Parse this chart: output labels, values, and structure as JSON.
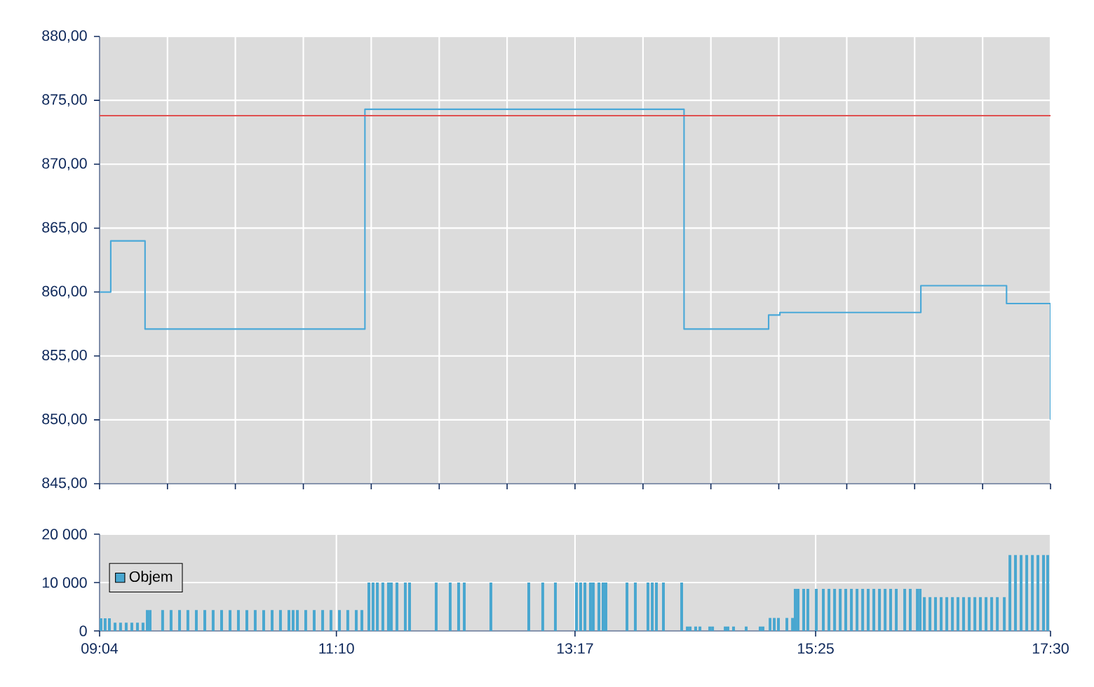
{
  "chart_data": [
    {
      "type": "step",
      "color": "#4aa8d8",
      "x": [
        9.067,
        9.166,
        9.47,
        11.42,
        14.25,
        15.0,
        15.1,
        16.35,
        17.11,
        17.5
      ],
      "values": [
        860,
        864,
        857.1,
        874.3,
        857.1,
        858.2,
        858.4,
        860.5,
        859.1,
        850
      ],
      "xlim": [
        9.067,
        17.5
      ],
      "xticks": [
        {
          "value": 9.067,
          "label": null
        },
        {
          "value": 9.669,
          "label": null
        },
        {
          "value": 10.271,
          "label": null
        },
        {
          "value": 10.874,
          "label": null
        },
        {
          "value": 11.476,
          "label": null
        },
        {
          "value": 12.079,
          "label": null
        },
        {
          "value": 12.681,
          "label": null
        },
        {
          "value": 13.283,
          "label": null
        },
        {
          "value": 13.886,
          "label": null
        },
        {
          "value": 14.488,
          "label": null
        },
        {
          "value": 15.09,
          "label": null
        },
        {
          "value": 15.693,
          "label": null
        },
        {
          "value": 16.295,
          "label": null
        },
        {
          "value": 16.898,
          "label": null
        },
        {
          "value": 17.5,
          "label": null
        }
      ],
      "ylim": [
        845,
        880
      ],
      "yticks": [
        {
          "value": 845,
          "label": "845,00"
        },
        {
          "value": 850,
          "label": "850,00"
        },
        {
          "value": 855,
          "label": "855,00"
        },
        {
          "value": 860,
          "label": "860,00"
        },
        {
          "value": 865,
          "label": "865,00"
        },
        {
          "value": 870,
          "label": "870,00"
        },
        {
          "value": 875,
          "label": "875,00"
        },
        {
          "value": 880,
          "label": "880,00"
        }
      ],
      "ref_lines": [
        {
          "axis": "y",
          "value": 873.8,
          "color": "#e05050"
        }
      ],
      "grid": true,
      "tick_labels": "y"
    },
    {
      "type": "bar",
      "x": [
        9.079,
        9.116,
        9.154,
        9.204,
        9.253,
        9.303,
        9.353,
        9.403,
        9.452,
        9.49,
        9.515,
        9.626,
        9.701,
        9.776,
        9.85,
        9.925,
        10.0,
        10.074,
        10.149,
        10.224,
        10.298,
        10.373,
        10.447,
        10.522,
        10.597,
        10.671,
        10.746,
        10.783,
        10.821,
        10.895,
        10.97,
        11.045,
        11.119,
        11.194,
        11.268,
        11.343,
        11.393,
        11.455,
        11.492,
        11.53,
        11.579,
        11.629,
        11.654,
        11.704,
        11.778,
        11.816,
        12.052,
        12.176,
        12.251,
        12.301,
        12.537,
        12.873,
        12.997,
        13.109,
        13.296,
        13.333,
        13.371,
        13.42,
        13.445,
        13.495,
        13.532,
        13.557,
        13.744,
        13.818,
        13.93,
        13.968,
        14.005,
        14.067,
        14.229,
        14.279,
        14.304,
        14.353,
        14.391,
        14.478,
        14.503,
        14.615,
        14.639,
        14.689,
        14.801,
        14.925,
        14.95,
        15.013,
        15.05,
        15.087,
        15.162,
        15.212,
        15.236,
        15.261,
        15.311,
        15.348,
        15.423,
        15.485,
        15.535,
        15.585,
        15.635,
        15.684,
        15.734,
        15.784,
        15.834,
        15.883,
        15.933,
        15.983,
        16.033,
        16.082,
        16.132,
        16.207,
        16.256,
        16.319,
        16.344,
        16.381,
        16.431,
        16.48,
        16.53,
        16.58,
        16.63,
        16.679,
        16.729,
        16.779,
        16.829,
        16.878,
        16.928,
        16.978,
        17.028,
        17.09,
        17.14,
        17.189,
        17.239,
        17.289,
        17.339,
        17.388,
        17.438,
        17.475
      ],
      "series": [
        {
          "name": "Objem",
          "color": "#49a7d0",
          "values": [
            2600,
            2600,
            2600,
            1700,
            1700,
            1700,
            1700,
            1700,
            1700,
            4300,
            4300,
            4300,
            4300,
            4300,
            4300,
            4300,
            4300,
            4300,
            4300,
            4300,
            4300,
            4300,
            4300,
            4300,
            4300,
            4300,
            4300,
            4300,
            4300,
            4300,
            4300,
            4300,
            4300,
            4300,
            4300,
            4300,
            4300,
            10000,
            10000,
            10000,
            10000,
            10000,
            10000,
            10000,
            10000,
            10000,
            10000,
            10000,
            10000,
            10000,
            10000,
            10000,
            10000,
            10000,
            10000,
            10000,
            10000,
            10000,
            10000,
            10000,
            10000,
            10000,
            10000,
            10000,
            10000,
            10000,
            10000,
            10000,
            10000,
            900,
            900,
            900,
            900,
            900,
            900,
            900,
            900,
            900,
            900,
            900,
            900,
            2700,
            2700,
            2700,
            2700,
            2700,
            8700,
            8700,
            8700,
            8700,
            8700,
            8700,
            8700,
            8700,
            8700,
            8700,
            8700,
            8700,
            8700,
            8700,
            8700,
            8700,
            8700,
            8700,
            8700,
            8700,
            8700,
            8700,
            8700,
            7000,
            7000,
            7000,
            7000,
            7000,
            7000,
            7000,
            7000,
            7000,
            7000,
            7000,
            7000,
            7000,
            7000,
            7000,
            15700,
            15700,
            15700,
            15700,
            15700,
            15700,
            15700,
            15700
          ]
        }
      ],
      "xlim": [
        9.067,
        17.5
      ],
      "xticks": [
        {
          "value": 9.067,
          "label": "09:04"
        },
        {
          "value": 11.167,
          "label": "11:10"
        },
        {
          "value": 13.283,
          "label": "13:17"
        },
        {
          "value": 15.417,
          "label": "15:25"
        },
        {
          "value": 17.5,
          "label": "17:30"
        }
      ],
      "ylim": [
        0,
        20000
      ],
      "yticks": [
        0,
        {
          "value": 10000,
          "label": "10 000"
        },
        {
          "value": 20000,
          "label": "20 000"
        }
      ],
      "grid": true,
      "legend": "top left"
    }
  ]
}
